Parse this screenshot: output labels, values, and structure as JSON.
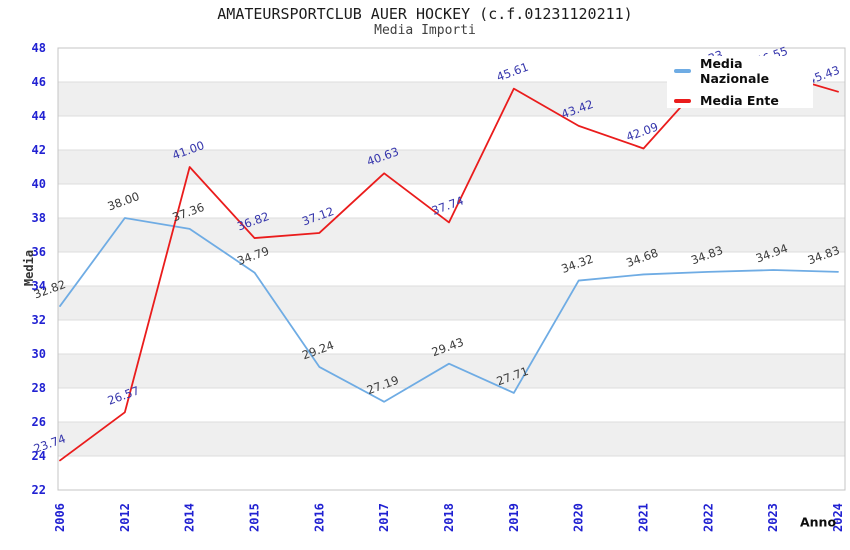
{
  "title": "AMATEURSPORTCLUB AUER HOCKEY (c.f.01231120211)",
  "subtitle": "Media Importi",
  "legend": {
    "position": "top-right",
    "items": [
      {
        "label": "Media Nazionale",
        "color": "#6face4"
      },
      {
        "label": "Media Ente",
        "color": "#ea1c1c"
      }
    ]
  },
  "axes": {
    "x_title": "Anno",
    "y_title": "Media",
    "x_tick_labels": [
      "2006",
      "2012",
      "2014",
      "2015",
      "2016",
      "2017",
      "2018",
      "2019",
      "2020",
      "2021",
      "2022",
      "2023",
      "2024"
    ],
    "y_tick_labels": [
      22,
      24,
      26,
      28,
      30,
      32,
      34,
      36,
      38,
      40,
      42,
      44,
      46,
      48
    ],
    "tick_label_color": "#2121d2"
  },
  "colors": {
    "background": "#ffffff",
    "band_gray": "#efefef",
    "gridline": "#dcdcdc",
    "plot_border": "#c4c4c4",
    "nazionale_line": "#6face4",
    "ente_line": "#ea1c1c",
    "nazionale_label": "#3a3a3a",
    "ente_label": "#3636ac"
  },
  "chart_data": {
    "type": "line",
    "title": "AMATEURSPORTCLUB AUER HOCKEY (c.f.01231120211)",
    "subtitle": "Media Importi",
    "xlabel": "Anno",
    "ylabel": "Media",
    "ylim": [
      22,
      48
    ],
    "y_tick_step": 2,
    "grid": "horizontal-only, alternating gray bands",
    "legend_position": "top-right",
    "categories": [
      "2006",
      "2012",
      "2014",
      "2015",
      "2016",
      "2017",
      "2018",
      "2019",
      "2020",
      "2021",
      "2022",
      "2023",
      "2024"
    ],
    "series": [
      {
        "name": "Media Nazionale",
        "color": "#6face4",
        "label_color": "#3a3a3a",
        "values": [
          32.82,
          38.0,
          37.36,
          34.79,
          29.24,
          27.19,
          29.43,
          27.71,
          34.32,
          34.68,
          34.83,
          34.94,
          34.83
        ]
      },
      {
        "name": "Media Ente",
        "color": "#ea1c1c",
        "label_color": "#3636ac",
        "values": [
          23.74,
          26.57,
          41.0,
          36.82,
          37.12,
          40.63,
          37.74,
          45.61,
          43.42,
          42.09,
          46.33,
          46.55,
          45.43
        ]
      }
    ]
  }
}
